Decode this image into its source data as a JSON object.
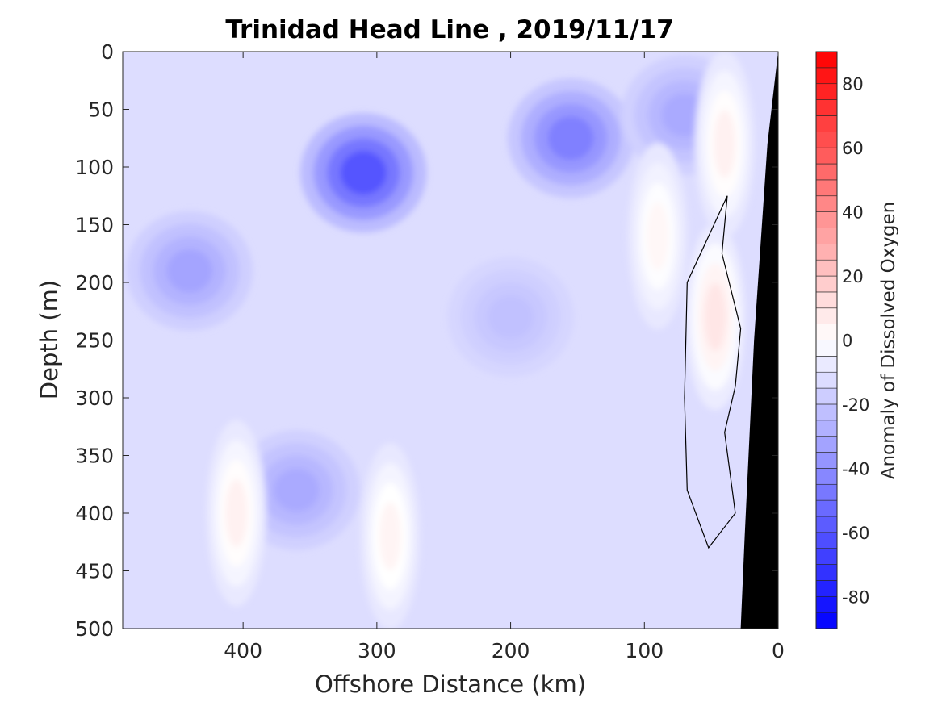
{
  "chart_data": {
    "type": "heatmap",
    "title": "Trinidad Head Line , 2019/11/17",
    "xlabel": "Offshore Distance (km)",
    "ylabel": "Depth (m)",
    "colorbar_label": "Anomaly of Dissolved Oxygen",
    "xlim": [
      490,
      0
    ],
    "ylim": [
      0,
      500
    ],
    "y_reversed": true,
    "x_ticks": [
      400,
      300,
      200,
      100,
      0
    ],
    "x_tick_labels": [
      "400",
      "300",
      "200",
      "100",
      "0"
    ],
    "y_ticks": [
      0,
      50,
      100,
      150,
      200,
      250,
      300,
      350,
      400,
      450,
      500
    ],
    "y_tick_labels": [
      "0",
      "50",
      "100",
      "150",
      "200",
      "250",
      "300",
      "350",
      "400",
      "450",
      "500"
    ],
    "colorbar_range": [
      -90,
      90
    ],
    "colorbar_step": 5,
    "colorbar_ticks": [
      80,
      60,
      40,
      20,
      0,
      -20,
      -40,
      -60,
      -80
    ],
    "colorbar_tick_labels": [
      "80",
      "60",
      "40",
      "20",
      "0",
      "-20",
      "-40",
      "-60",
      "-80"
    ],
    "colormap": {
      "negative_end": "#0000ff",
      "zero": "#ffffff",
      "positive_end": "#ff0000"
    },
    "background_anomaly": -12,
    "features": [
      {
        "type": "min",
        "x": 310,
        "depth": 105,
        "value": -60
      },
      {
        "type": "min",
        "x": 155,
        "depth": 75,
        "value": -45
      },
      {
        "type": "min",
        "x": 440,
        "depth": 190,
        "value": -32
      },
      {
        "type": "min",
        "x": 360,
        "depth": 380,
        "value": -30
      },
      {
        "type": "min",
        "x": 70,
        "depth": 55,
        "value": -30
      },
      {
        "type": "min",
        "x": 200,
        "depth": 230,
        "value": -22
      },
      {
        "type": "max",
        "x": 47,
        "depth": 230,
        "value": 9
      },
      {
        "type": "max",
        "x": 40,
        "depth": 80,
        "value": 5
      },
      {
        "type": "max",
        "x": 290,
        "depth": 420,
        "value": 4
      },
      {
        "type": "max",
        "x": 405,
        "depth": 400,
        "value": 5
      },
      {
        "type": "max",
        "x": 90,
        "depth": 160,
        "value": 3
      }
    ],
    "zero_contour": [
      [
        38,
        125
      ],
      [
        42,
        175
      ],
      [
        28,
        240
      ],
      [
        32,
        290
      ],
      [
        40,
        330
      ],
      [
        32,
        400
      ],
      [
        52,
        430
      ],
      [
        68,
        380
      ],
      [
        70,
        300
      ],
      [
        68,
        200
      ]
    ],
    "bathymetry": [
      [
        0,
        0
      ],
      [
        8,
        80
      ],
      [
        18,
        250
      ],
      [
        25,
        420
      ],
      [
        28,
        500
      ]
    ],
    "bathymetry_color": "#000000"
  }
}
